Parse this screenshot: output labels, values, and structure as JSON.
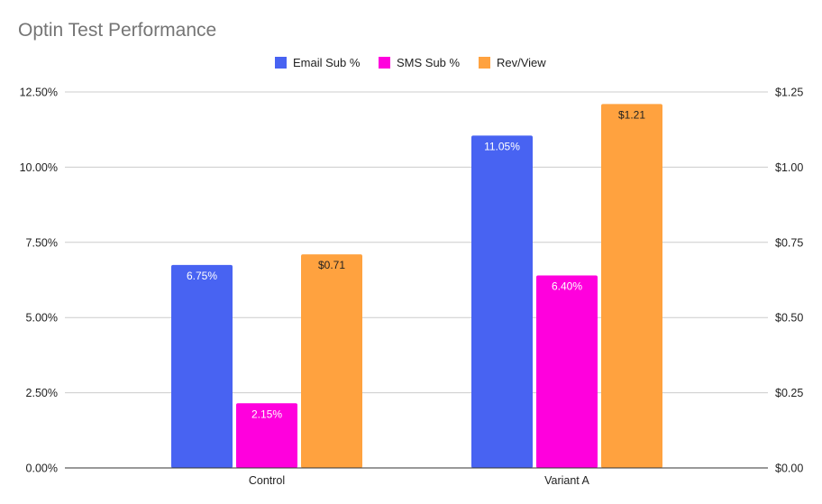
{
  "chart_data": {
    "type": "bar",
    "title": "Optin Test Performance",
    "categories": [
      "Control",
      "Variant A"
    ],
    "series": [
      {
        "name": "Email Sub %",
        "color": "#4863f2",
        "axis": "left",
        "values": [
          6.75,
          11.05
        ],
        "labels": [
          "6.75%",
          "11.05%"
        ],
        "label_color": "#ffffff"
      },
      {
        "name": "SMS Sub %",
        "color": "#ff00dd",
        "axis": "left",
        "values": [
          2.15,
          6.4
        ],
        "labels": [
          "2.15%",
          "6.40%"
        ],
        "label_color": "#ffffff"
      },
      {
        "name": "Rev/View",
        "color": "#ffa23f",
        "axis": "right",
        "values": [
          0.71,
          1.21
        ],
        "labels": [
          "$0.71",
          "$1.21"
        ],
        "label_color": "#222222"
      }
    ],
    "left_axis": {
      "ylim": [
        0,
        12.5
      ],
      "ticks": [
        "0.00%",
        "2.50%",
        "5.00%",
        "7.50%",
        "10.00%",
        "12.50%"
      ]
    },
    "right_axis": {
      "ylim": [
        0,
        1.25
      ],
      "ticks": [
        "$0.00",
        "$0.25",
        "$0.50",
        "$0.75",
        "$1.00",
        "$1.25"
      ]
    },
    "legend_position": "top-center",
    "grid": true
  }
}
